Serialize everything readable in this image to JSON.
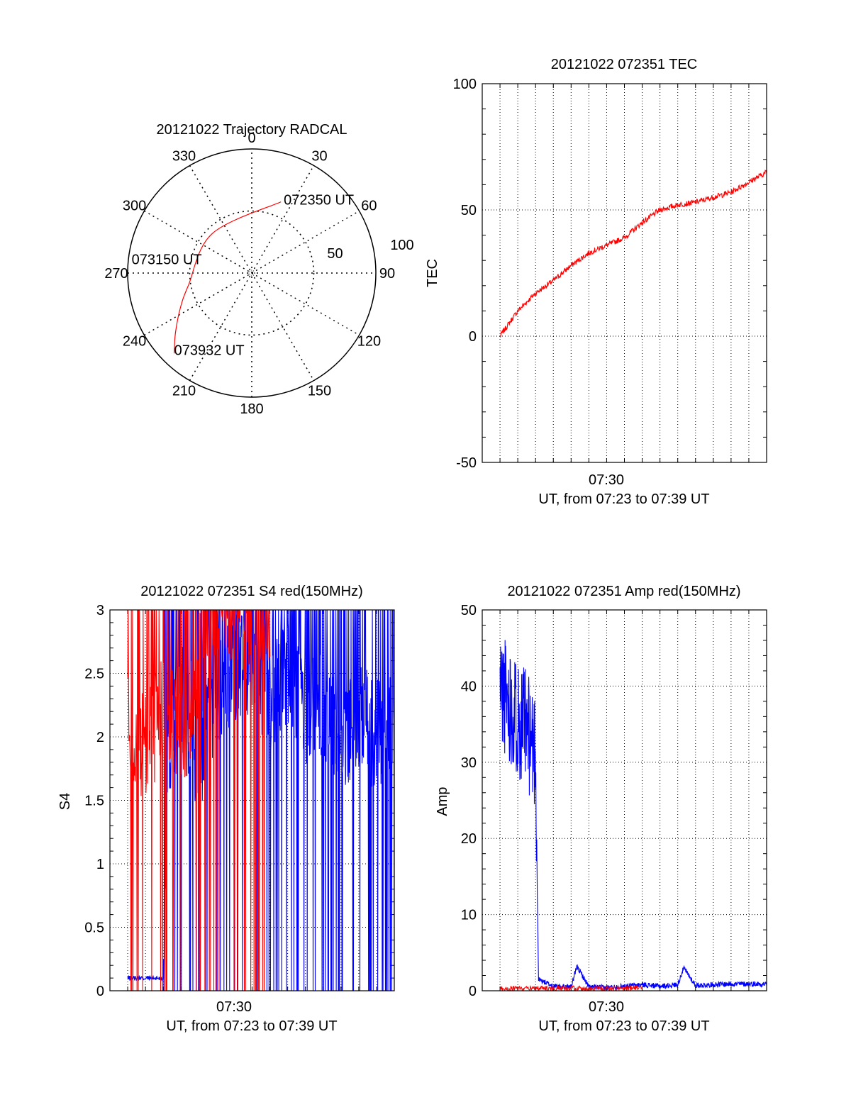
{
  "colors": {
    "red": "#ff0000",
    "blue": "#0000ff",
    "axis": "#000000"
  },
  "chart_data": [
    {
      "id": "trajectory",
      "type": "polar",
      "title": "20121022 Trajectory RADCAL",
      "r_axis": {
        "max": 100,
        "rings": [
          50,
          100
        ],
        "ring_labels": [
          "50",
          "100"
        ]
      },
      "azimuth_labels": [
        "0",
        "30",
        "60",
        "90",
        "120",
        "150",
        "180",
        "210",
        "240",
        "270",
        "300",
        "330"
      ],
      "grid": "dotted",
      "series": [
        {
          "color": "red",
          "points_az_zd": [
            [
              22.3,
              62
            ],
            [
              315,
              45
            ],
            [
              259,
              52
            ],
            [
              244,
              64
            ],
            [
              232,
              78
            ],
            [
              224,
              90
            ]
          ]
        }
      ],
      "annotations": [
        {
          "text": "072350 UT",
          "at_point": 0
        },
        {
          "text": "073150 UT",
          "at_point": 2
        },
        {
          "text": "073932 UT",
          "at_point": 5
        }
      ]
    },
    {
      "id": "tec",
      "type": "line",
      "title": "20121022 072351 TEC",
      "ylabel": "TEC",
      "xlabel": "UT, from 07:23 to 07:39 UT",
      "x_tick_label": "07:30",
      "x_start": "07:23",
      "x_end": "07:39",
      "ylim": [
        -50,
        100
      ],
      "yticks": [
        -50,
        0,
        50,
        100
      ],
      "grid": true,
      "series": [
        {
          "color": "red",
          "x": [
            "07:24:00",
            "07:25:00",
            "07:26:00",
            "07:27:00",
            "07:28:00",
            "07:29:00",
            "07:30:00",
            "07:31:00",
            "07:32:00",
            "07:33:00",
            "07:34:00",
            "07:35:00",
            "07:36:00",
            "07:37:00",
            "07:38:00",
            "07:39:00"
          ],
          "values": [
            0,
            10,
            17,
            22,
            28,
            33,
            36,
            39,
            45,
            50,
            52,
            53,
            55,
            57,
            61,
            65
          ]
        }
      ]
    },
    {
      "id": "s4",
      "type": "line",
      "title": "20121022 072351 S4 red(150MHz)",
      "ylabel": "S4",
      "xlabel": "UT, from 07:23 to 07:39 UT",
      "x_tick_label": "07:30",
      "x_start": "07:23",
      "x_end": "07:39",
      "ylim": [
        0,
        3
      ],
      "yticks": [
        0,
        0.5,
        1,
        1.5,
        2,
        2.5,
        3
      ],
      "ytick_labels": [
        "0",
        "0.5",
        "1",
        "1.5",
        "2",
        "2.5",
        "3"
      ],
      "grid": true,
      "series": [
        {
          "color": "blue",
          "x": [
            "07:24:00",
            "07:25:00",
            "07:26:00",
            "07:26:10",
            "07:26:30",
            "07:27:00",
            "07:28:00",
            "07:29:00",
            "07:30:00",
            "07:31:00",
            "07:32:00",
            "07:33:00",
            "07:34:00",
            "07:35:00",
            "07:36:00",
            "07:37:00",
            "07:38:00",
            "07:39:00"
          ],
          "values": [
            0.1,
            0.1,
            0.1,
            1.5,
            2.0,
            2.3,
            1.8,
            2.4,
            2.5,
            2.6,
            2.3,
            2.5,
            2.2,
            2.3,
            2.0,
            2.2,
            2.0,
            2.1
          ]
        },
        {
          "color": "red",
          "x": [
            "07:24:00",
            "07:25:00",
            "07:26:00",
            "07:27:00",
            "07:28:00",
            "07:29:00",
            "07:30:00",
            "07:31:00",
            "07:32:00"
          ],
          "values": [
            2.2,
            1.9,
            2.2,
            2.0,
            2.5,
            3.0,
            3.0,
            3.0,
            3.0
          ]
        }
      ]
    },
    {
      "id": "amp",
      "type": "line",
      "title": "20121022 072351 Amp red(150MHz)",
      "ylabel": "Amp",
      "xlabel": "UT, from 07:23 to 07:39 UT",
      "x_tick_label": "07:30",
      "x_start": "07:23",
      "x_end": "07:39",
      "ylim": [
        0,
        50
      ],
      "yticks": [
        0,
        10,
        20,
        30,
        40,
        50
      ],
      "grid": true,
      "series": [
        {
          "color": "blue",
          "x": [
            "07:24:00",
            "07:25:00",
            "07:26:00",
            "07:26:10",
            "07:27:00",
            "07:28:00",
            "07:28:20",
            "07:29:00",
            "07:30:00",
            "07:31:00",
            "07:32:00",
            "07:33:00",
            "07:34:00",
            "07:34:20",
            "07:35:00",
            "07:36:00",
            "07:37:00",
            "07:38:00",
            "07:39:00"
          ],
          "values": [
            40,
            36,
            32,
            1.5,
            0.6,
            0.5,
            3.2,
            0.5,
            0.4,
            0.6,
            0.8,
            0.6,
            0.8,
            3.0,
            0.7,
            0.8,
            0.9,
            0.9,
            0.9
          ]
        },
        {
          "color": "red",
          "x": [
            "07:24:00",
            "07:25:00",
            "07:26:00",
            "07:27:00",
            "07:28:00",
            "07:29:00",
            "07:30:00",
            "07:31:00",
            "07:32:00"
          ],
          "values": [
            0.3,
            0.3,
            0.3,
            0.3,
            0.3,
            0.3,
            0.3,
            0.3,
            0.5
          ]
        }
      ]
    }
  ]
}
